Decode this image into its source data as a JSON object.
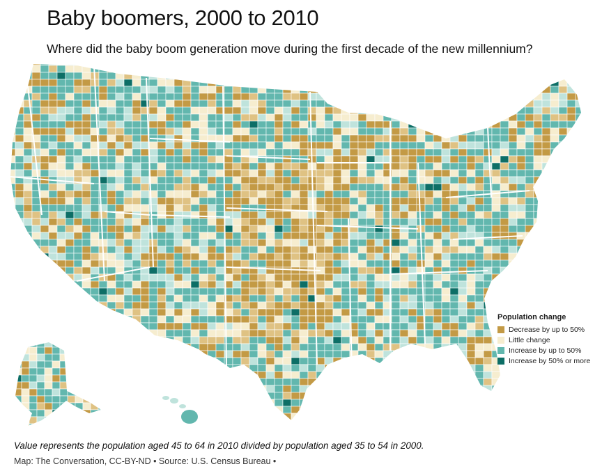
{
  "header": {
    "title": "Baby boomers, 2000 to 2010",
    "subtitle": "Where did the baby boom generation move during the first decade of the new millennium?"
  },
  "legend": {
    "title": "Population change",
    "items": [
      {
        "label": "Decrease by up to 50%",
        "color": "#c39a45"
      },
      {
        "label": "Little change",
        "color": "#f6edcf"
      },
      {
        "label": "Increase by up to 50%",
        "color": "#62b7ae"
      },
      {
        "label": "Increase by 50% or more",
        "color": "#0d6e66"
      }
    ]
  },
  "colors": {
    "decrease": "#c39a45",
    "decrease_light": "#dfc283",
    "little_change": "#f6edcf",
    "increase_light": "#bfe3dc",
    "increase": "#62b7ae",
    "increase_strong": "#0d6e66",
    "borders": "#ffffff"
  },
  "footer": {
    "note": "Value represents the population aged 45 to 64 in 2010 divided by population aged 35 to 54 in 2000.",
    "source": "Map: The Conversation, CC-BY-ND • Source: U.S. Census Bureau •"
  }
}
